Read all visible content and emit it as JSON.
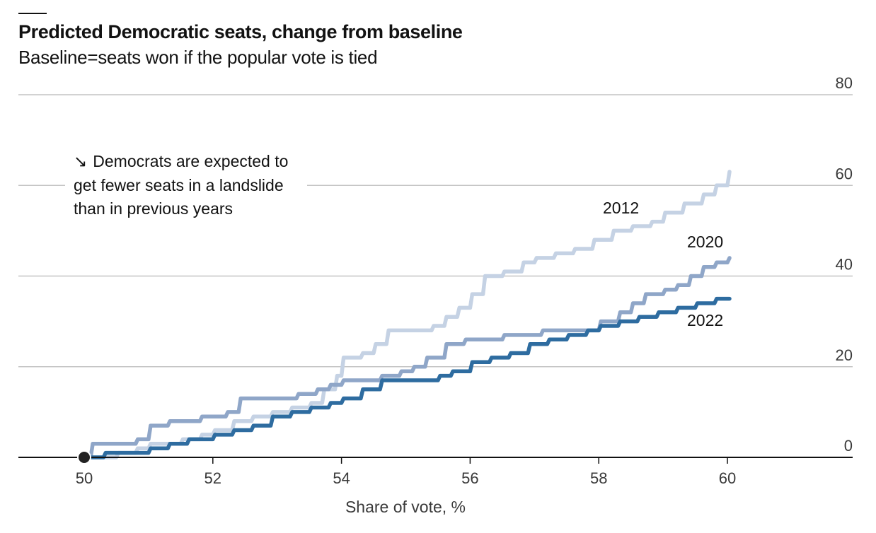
{
  "chart_data": {
    "type": "line",
    "title": "Predicted Democratic seats, change from baseline",
    "subtitle": "Baseline=seats won if the popular vote is tied",
    "xlabel": "Share of vote, %",
    "ylabel": "",
    "xlim": [
      50,
      61.9
    ],
    "ylim": [
      0,
      80
    ],
    "x_ticks": [
      50,
      52,
      54,
      56,
      58,
      60
    ],
    "y_ticks": [
      0,
      20,
      40,
      60,
      80
    ],
    "grid": true,
    "annotation": {
      "arrow": "↘",
      "lines": [
        "Democrats are expected to",
        "get fewer seats in a landslide",
        "than in previous years"
      ]
    },
    "series": [
      {
        "name": "2012",
        "color": "#c5d2e4",
        "x": [
          50.0,
          50.2,
          50.5,
          50.8,
          51.0,
          51.2,
          51.5,
          51.8,
          52.0,
          52.3,
          52.6,
          52.9,
          53.2,
          53.5,
          53.7,
          53.9,
          54.0,
          54.3,
          54.5,
          54.7,
          55.0,
          55.2,
          55.4,
          55.6,
          55.8,
          56.0,
          56.2,
          56.5,
          56.8,
          57.0,
          57.3,
          57.6,
          57.9,
          58.2,
          58.5,
          58.8,
          59.0,
          59.3,
          59.6,
          59.8,
          60.0
        ],
        "values": [
          0,
          0,
          1,
          2,
          3,
          3,
          4,
          5,
          6,
          8,
          9,
          10,
          11,
          12,
          15,
          18,
          22,
          23,
          25,
          28,
          28,
          28,
          29,
          31,
          33,
          36,
          40,
          41,
          43,
          44,
          45,
          46,
          48,
          50,
          51,
          52,
          54,
          56,
          58,
          60,
          63
        ]
      },
      {
        "name": "2020",
        "color": "#8fa6c8",
        "x": [
          50.0,
          50.1,
          50.5,
          50.8,
          51.0,
          51.3,
          51.6,
          51.8,
          52.2,
          52.4,
          52.8,
          53.0,
          53.3,
          53.6,
          53.8,
          54.0,
          54.3,
          54.6,
          54.9,
          55.1,
          55.3,
          55.6,
          55.9,
          56.2,
          56.5,
          56.8,
          57.1,
          57.4,
          57.7,
          58.0,
          58.3,
          58.5,
          58.7,
          59.0,
          59.2,
          59.4,
          59.6,
          59.8,
          60.0
        ],
        "values": [
          0,
          3,
          3,
          4,
          7,
          8,
          8,
          9,
          10,
          13,
          13,
          13,
          14,
          15,
          16,
          17,
          17,
          18,
          19,
          20,
          22,
          25,
          26,
          26,
          27,
          27,
          28,
          28,
          28,
          30,
          32,
          34,
          36,
          37,
          38,
          40,
          42,
          43,
          44
        ]
      },
      {
        "name": "2022",
        "color": "#2e6ca0",
        "x": [
          50.0,
          50.3,
          50.7,
          51.0,
          51.3,
          51.6,
          52.0,
          52.3,
          52.6,
          52.9,
          53.2,
          53.5,
          53.8,
          54.0,
          54.3,
          54.6,
          55.0,
          55.3,
          55.5,
          55.7,
          56.0,
          56.3,
          56.6,
          56.9,
          57.2,
          57.5,
          57.8,
          58.0,
          58.3,
          58.6,
          58.9,
          59.2,
          59.5,
          59.8,
          60.0
        ],
        "values": [
          0,
          1,
          1,
          2,
          3,
          4,
          5,
          6,
          7,
          9,
          10,
          11,
          12,
          13,
          15,
          17,
          17,
          17,
          18,
          19,
          21,
          22,
          23,
          25,
          26,
          27,
          28,
          29,
          30,
          31,
          32,
          33,
          34,
          35,
          35
        ]
      }
    ]
  }
}
